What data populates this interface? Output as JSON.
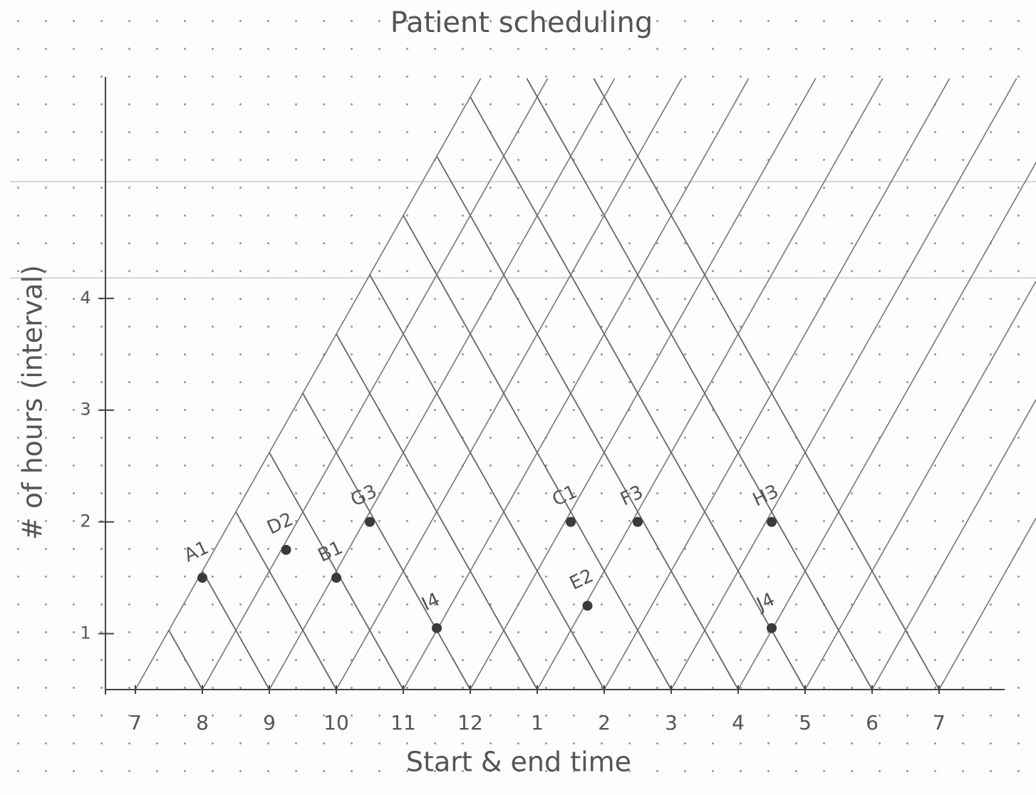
{
  "chart_data": {
    "type": "scatter",
    "title": "Patient scheduling",
    "x_label": "Start & end time",
    "y_label": "# of hours (interval)",
    "labels": [
      "A1",
      "D2",
      "B1",
      "G3",
      "I4",
      "C1",
      "E2",
      "F3",
      "H3",
      "J4"
    ],
    "x": [
      8,
      9.25,
      10,
      10.5,
      11.5,
      13.5,
      13.75,
      14.5,
      16.5,
      16.5
    ],
    "values": [
      1.5,
      1.75,
      1.5,
      2,
      1.05,
      2,
      1.25,
      2,
      2,
      1.05
    ],
    "color": "#3a3a3a",
    "xlim": [
      6.5,
      20
    ],
    "ylim": [
      0.5,
      6
    ],
    "xticks": [
      7,
      8,
      9,
      10,
      11,
      12,
      {
        "value": 13,
        "label": "1"
      },
      {
        "value": 14,
        "label": "2"
      },
      {
        "value": 15,
        "label": "3"
      },
      {
        "value": 16,
        "label": "4"
      },
      {
        "value": 17,
        "label": "5"
      },
      {
        "value": 18,
        "label": "6"
      },
      {
        "value": 19,
        "label": "7"
      }
    ],
    "yticks": [
      1,
      2,
      3,
      4
    ]
  }
}
